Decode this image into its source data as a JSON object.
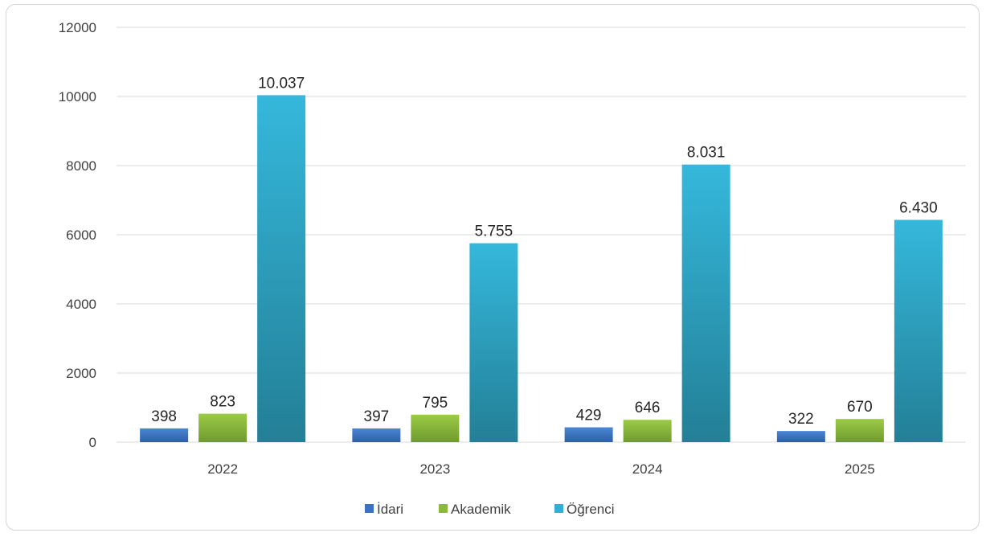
{
  "chart_data": {
    "type": "bar",
    "categories": [
      "2022",
      "2023",
      "2024",
      "2025"
    ],
    "series": [
      {
        "name": "İdari",
        "values": [
          398,
          397,
          429,
          322
        ],
        "labels": [
          "398",
          "397",
          "429",
          "322"
        ],
        "color": "#3b73c0"
      },
      {
        "name": "Akademik",
        "values": [
          823,
          795,
          646,
          670
        ],
        "labels": [
          "823",
          "795",
          "646",
          "670"
        ],
        "color": "#8db83f"
      },
      {
        "name": "Öğrenci",
        "values": [
          10037,
          5755,
          8031,
          6430
        ],
        "labels": [
          "10.037",
          "5.755",
          "8.031",
          "6.430"
        ],
        "color": "#2eb1d3"
      }
    ],
    "ylim": [
      0,
      12000
    ],
    "yticks": [
      "0",
      "2000",
      "4000",
      "6000",
      "8000",
      "10000",
      "12000"
    ],
    "grid": true,
    "legend_position": "bottom"
  }
}
